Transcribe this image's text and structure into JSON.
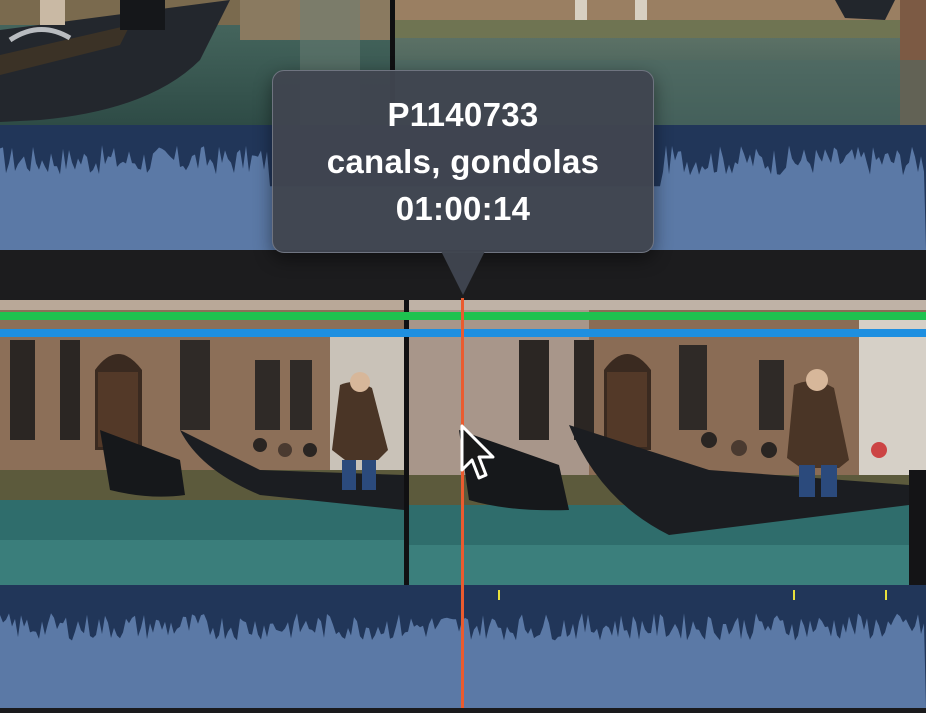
{
  "tooltip": {
    "clip_name": "P1140733",
    "keywords": "canals, gondolas",
    "timecode": "01:00:14"
  },
  "colors": {
    "playhead": "#ea5b2f",
    "audio_waveform_fill": "#5b79a6",
    "audio_waveform_peak": "#213659",
    "connected_clip_bar": "#1fc24f",
    "secondary_bar": "#1e8fe0",
    "audio_peak_marker": "#e8e03c"
  },
  "icons": [
    "pointer-cursor-icon"
  ]
}
